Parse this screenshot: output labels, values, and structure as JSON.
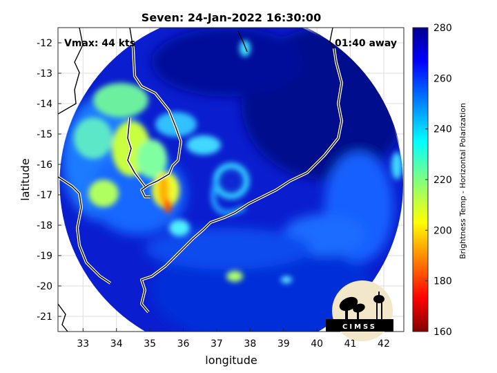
{
  "chart_data": {
    "type": "heatmap",
    "title": "Seven: 24-Jan-2022 16:30:00",
    "xlabel": "longitude",
    "ylabel": "latitude",
    "xlim": [
      32.25,
      42.6
    ],
    "ylim": [
      -21.5,
      -11.5
    ],
    "xticks": [
      33,
      34,
      35,
      36,
      37,
      38,
      39,
      40,
      41,
      42
    ],
    "yticks": [
      -12,
      -13,
      -14,
      -15,
      -16,
      -17,
      -18,
      -19,
      -20,
      -21
    ],
    "grid": true,
    "annotations": {
      "vmax": "Vmax: 44 kts",
      "away": "01:40 away"
    },
    "colorbar": {
      "label": "Brightness Temp - Horizontal Polarization",
      "range": [
        160,
        280
      ],
      "ticks": [
        280,
        260,
        240,
        220,
        200,
        180,
        160
      ],
      "colormap": "jet"
    },
    "swath": {
      "center_lon": 37.45,
      "center_lat": -16.6,
      "radius_deg": 5.15
    },
    "storm_center": {
      "lon": 37.5,
      "lat": -16.8
    },
    "features": [
      {
        "name": "cold convective band",
        "lon": 35.5,
        "lat": -17.3,
        "tb": 185
      },
      {
        "name": "spiral band ring",
        "lon": 37.3,
        "lat": -16.8,
        "tb": 235
      },
      {
        "name": "warm ocean east",
        "lon": 40.5,
        "lat": -15.5,
        "tb": 272
      }
    ]
  },
  "logo": {
    "text": "CIMSS"
  }
}
